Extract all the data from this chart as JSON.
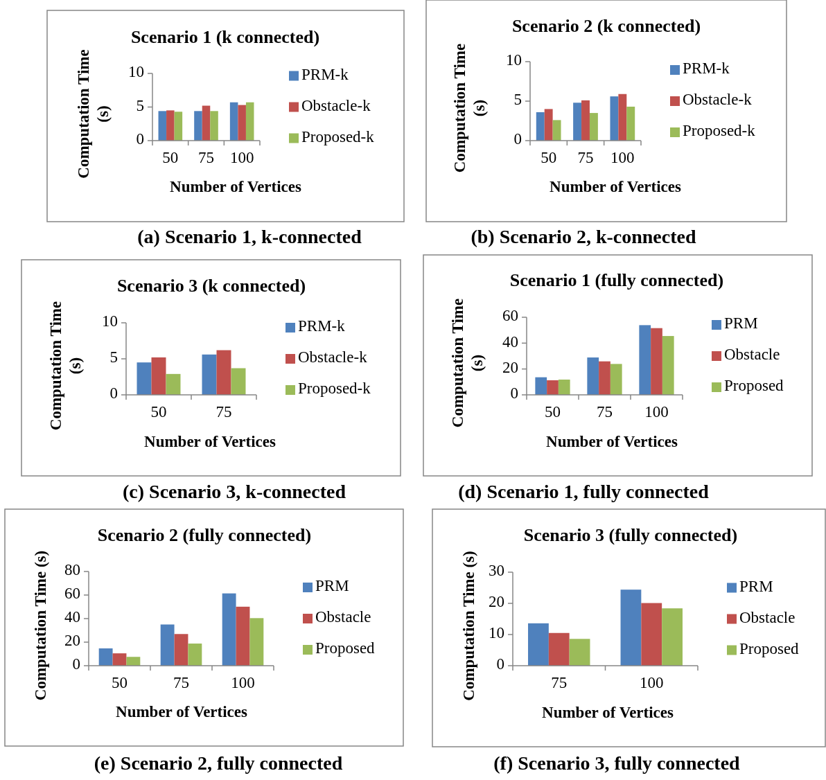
{
  "chart_data": [
    {
      "type": "bar",
      "title": "Scenario 1 (k connected)",
      "xlabel": "Number of Vertices",
      "ylabel": "Computation Time (s)",
      "categories": [
        "50",
        "75",
        "100"
      ],
      "series": [
        {
          "name": "PRM-k",
          "color": "#4f81bd",
          "values": [
            4.4,
            4.4,
            5.7
          ]
        },
        {
          "name": "Obstacle-k",
          "color": "#c0504d",
          "values": [
            4.5,
            5.2,
            5.3
          ]
        },
        {
          "name": "Proposed-k",
          "color": "#9bbb59",
          "values": [
            4.3,
            4.4,
            5.7
          ]
        }
      ],
      "ylim": [
        0,
        10
      ],
      "yticks": [
        0,
        5,
        10
      ],
      "grid": false,
      "legend": "right",
      "annotations": [
        "(a) Scenario 1, k-connected"
      ]
    },
    {
      "type": "bar",
      "title": "Scenario 2 (k connected)",
      "xlabel": "Number of Vertices",
      "ylabel": "Computation Time (s)",
      "categories": [
        "50",
        "75",
        "100"
      ],
      "series": [
        {
          "name": "PRM-k",
          "color": "#4f81bd",
          "values": [
            3.6,
            4.8,
            5.6
          ]
        },
        {
          "name": "Obstacle-k",
          "color": "#c0504d",
          "values": [
            4.0,
            5.1,
            5.9
          ]
        },
        {
          "name": "Proposed-k",
          "color": "#9bbb59",
          "values": [
            2.6,
            3.5,
            4.3
          ]
        }
      ],
      "ylim": [
        0,
        10
      ],
      "yticks": [
        0,
        5,
        10
      ],
      "grid": false,
      "legend": "right",
      "annotations": [
        "(b) Scenario 2, k-connected"
      ]
    },
    {
      "type": "bar",
      "title": "Scenario 3 (k connected)",
      "xlabel": "Number of Vertices",
      "ylabel": "Computation Time (s)",
      "categories": [
        "50",
        "75"
      ],
      "series": [
        {
          "name": "PRM-k",
          "color": "#4f81bd",
          "values": [
            4.5,
            5.6
          ]
        },
        {
          "name": "Obstacle-k",
          "color": "#c0504d",
          "values": [
            5.2,
            6.2
          ]
        },
        {
          "name": "Proposed-k",
          "color": "#9bbb59",
          "values": [
            2.9,
            3.7
          ]
        }
      ],
      "ylim": [
        0,
        10
      ],
      "yticks": [
        0,
        5,
        10
      ],
      "grid": false,
      "legend": "right",
      "annotations": [
        "(c) Scenario 3, k-connected"
      ]
    },
    {
      "type": "bar",
      "title": "Scenario 1 (fully connected)",
      "xlabel": "Number of Vertices",
      "ylabel": "Computation Time (s)",
      "categories": [
        "50",
        "75",
        "100"
      ],
      "series": [
        {
          "name": "PRM",
          "color": "#4f81bd",
          "values": [
            13.6,
            28.9,
            53.9
          ]
        },
        {
          "name": "Obstacle",
          "color": "#c0504d",
          "values": [
            11.3,
            25.9,
            51.6
          ]
        },
        {
          "name": "Proposed",
          "color": "#9bbb59",
          "values": [
            11.8,
            23.9,
            45.5
          ]
        }
      ],
      "ylim": [
        0,
        60
      ],
      "yticks": [
        0,
        20,
        40,
        60
      ],
      "grid": false,
      "legend": "right",
      "annotations": [
        "(d) Scenario 1, fully connected"
      ]
    },
    {
      "type": "bar",
      "title": "Scenario 2 (fully connected)",
      "xlabel": "Number of Vertices",
      "ylabel": "Computation Time (s)",
      "categories": [
        "50",
        "75",
        "100"
      ],
      "series": [
        {
          "name": "PRM",
          "color": "#4f81bd",
          "values": [
            14.7,
            35,
            61.4
          ]
        },
        {
          "name": "Obstacle",
          "color": "#c0504d",
          "values": [
            10.5,
            26.9,
            50.1
          ]
        },
        {
          "name": "Proposed",
          "color": "#9bbb59",
          "values": [
            7.5,
            18.8,
            40.4
          ]
        }
      ],
      "ylim": [
        0,
        80
      ],
      "yticks": [
        0,
        20,
        40,
        60,
        80
      ],
      "grid": false,
      "legend": "right",
      "annotations": [
        "(e) Scenario 2, fully connected"
      ]
    },
    {
      "type": "bar",
      "title": "Scenario 3 (fully connected)",
      "xlabel": "Number of Vertices",
      "ylabel": "Computation Time (s)",
      "categories": [
        "75",
        "100"
      ],
      "series": [
        {
          "name": "PRM",
          "color": "#4f81bd",
          "values": [
            13.6,
            24.4
          ]
        },
        {
          "name": "Obstacle",
          "color": "#c0504d",
          "values": [
            10.5,
            20.1
          ]
        },
        {
          "name": "Proposed",
          "color": "#9bbb59",
          "values": [
            8.6,
            18.4
          ]
        }
      ],
      "ylim": [
        0,
        30
      ],
      "yticks": [
        0,
        10,
        20,
        30
      ],
      "grid": false,
      "legend": "right",
      "annotations": [
        "(f) Scenario 3, fully connected"
      ]
    }
  ]
}
